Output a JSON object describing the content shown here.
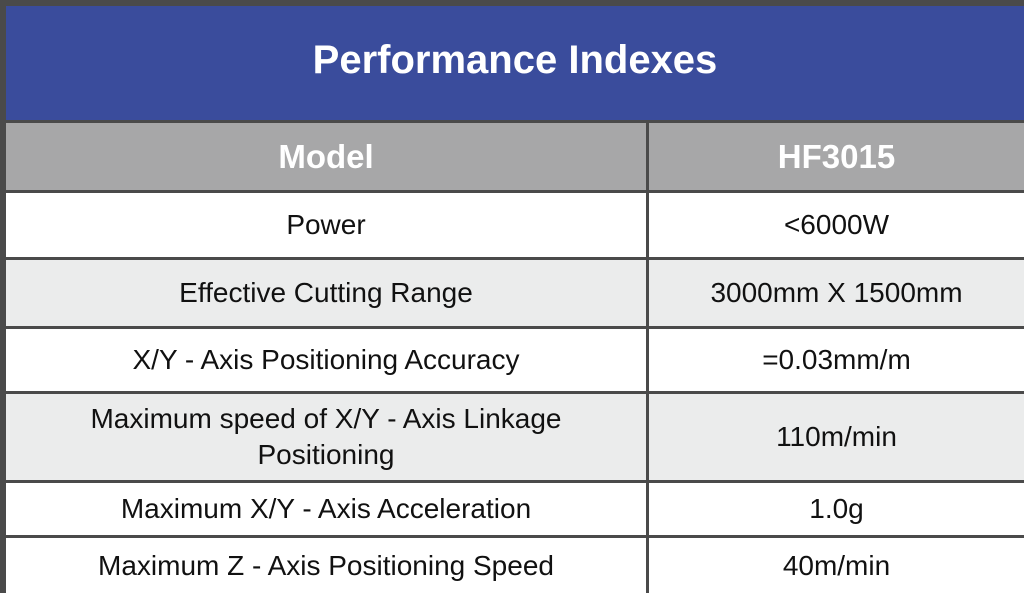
{
  "title": "Performance Indexes",
  "header": {
    "col1": "Model",
    "col2": "HF3015"
  },
  "rows": [
    {
      "label": "Power",
      "value": "<6000W"
    },
    {
      "label": "Effective Cutting Range",
      "value": "3000mm X 1500mm"
    },
    {
      "label": "X/Y - Axis Positioning Accuracy",
      "value": "=0.03mm/m"
    },
    {
      "label": "Maximum speed of X/Y - Axis Linkage Positioning",
      "value": "110m/min"
    },
    {
      "label": "Maximum X/Y - Axis Acceleration",
      "value": "1.0g"
    },
    {
      "label": "Maximum Z - Axis Positioning Speed",
      "value": "40m/min"
    }
  ],
  "colors": {
    "title_background": "#3a4c9c",
    "header_background": "#a7a7a8",
    "border": "#4a4a4a",
    "row_white": "#ffffff",
    "row_grey": "#ebecec"
  }
}
